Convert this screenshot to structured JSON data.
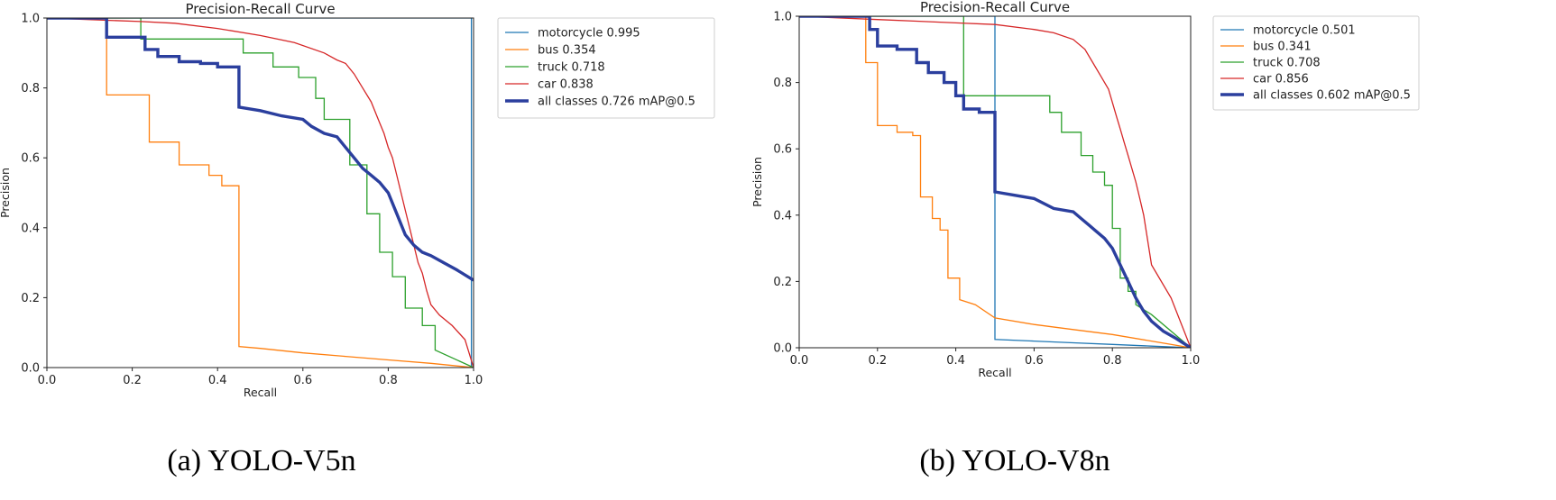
{
  "chart_data": [
    {
      "type": "line",
      "title": "Precision-Recall Curve",
      "xlabel": "Recall",
      "ylabel": "Precision",
      "xlim": [
        0,
        1
      ],
      "ylim": [
        0,
        1
      ],
      "xticks": [
        "0.0",
        "0.2",
        "0.4",
        "0.6",
        "0.8",
        "1.0"
      ],
      "yticks": [
        "0.0",
        "0.2",
        "0.4",
        "0.6",
        "0.8",
        "1.0"
      ],
      "caption": "(a) YOLO-V5n",
      "legend_position": "outside-right",
      "series": [
        {
          "name": "motorcycle 0.995",
          "color": "#1f77b4",
          "width": 1.3,
          "x": [
            0,
            0.995,
            0.995,
            1.0
          ],
          "y": [
            1,
            1,
            0,
            0
          ]
        },
        {
          "name": "bus 0.354",
          "color": "#ff7f0e",
          "width": 1.3,
          "x": [
            0,
            0.14,
            0.14,
            0.24,
            0.24,
            0.31,
            0.31,
            0.38,
            0.38,
            0.41,
            0.41,
            0.45,
            0.45,
            0.5,
            0.6,
            0.7,
            0.8,
            0.9,
            1.0
          ],
          "y": [
            1,
            1,
            0.78,
            0.78,
            0.645,
            0.645,
            0.58,
            0.58,
            0.55,
            0.55,
            0.52,
            0.52,
            0.06,
            0.055,
            0.042,
            0.032,
            0.022,
            0.012,
            0
          ]
        },
        {
          "name": "truck 0.718",
          "color": "#2ca02c",
          "width": 1.3,
          "x": [
            0,
            0.22,
            0.22,
            0.46,
            0.46,
            0.53,
            0.53,
            0.59,
            0.59,
            0.63,
            0.63,
            0.65,
            0.65,
            0.71,
            0.71,
            0.75,
            0.75,
            0.78,
            0.78,
            0.81,
            0.81,
            0.84,
            0.84,
            0.88,
            0.88,
            0.91,
            0.91,
            1.0
          ],
          "y": [
            1,
            1,
            0.94,
            0.94,
            0.9,
            0.9,
            0.86,
            0.86,
            0.83,
            0.83,
            0.77,
            0.77,
            0.71,
            0.71,
            0.58,
            0.58,
            0.44,
            0.44,
            0.33,
            0.33,
            0.26,
            0.26,
            0.17,
            0.17,
            0.12,
            0.12,
            0.05,
            0
          ]
        },
        {
          "name": "car 0.838",
          "color": "#d62728",
          "width": 1.3,
          "x": [
            0,
            0.22,
            0.3,
            0.4,
            0.5,
            0.58,
            0.65,
            0.68,
            0.7,
            0.72,
            0.74,
            0.76,
            0.77,
            0.78,
            0.79,
            0.8,
            0.81,
            0.82,
            0.83,
            0.84,
            0.85,
            0.86,
            0.87,
            0.88,
            0.89,
            0.9,
            0.92,
            0.95,
            0.98,
            1.0
          ],
          "y": [
            1,
            0.99,
            0.985,
            0.97,
            0.95,
            0.93,
            0.9,
            0.88,
            0.87,
            0.84,
            0.8,
            0.76,
            0.73,
            0.7,
            0.67,
            0.63,
            0.6,
            0.55,
            0.5,
            0.45,
            0.4,
            0.35,
            0.3,
            0.27,
            0.22,
            0.18,
            0.15,
            0.12,
            0.08,
            0.0
          ]
        },
        {
          "name": "all classes 0.726 mAP@0.5",
          "color": "#2b3f9e",
          "width": 3.4,
          "x": [
            0,
            0.14,
            0.14,
            0.23,
            0.23,
            0.26,
            0.26,
            0.31,
            0.31,
            0.36,
            0.36,
            0.4,
            0.4,
            0.45,
            0.45,
            0.5,
            0.55,
            0.6,
            0.62,
            0.65,
            0.68,
            0.7,
            0.72,
            0.74,
            0.76,
            0.78,
            0.8,
            0.82,
            0.84,
            0.86,
            0.88,
            0.9,
            0.93,
            0.96,
            1.0
          ],
          "y": [
            1,
            1,
            0.945,
            0.945,
            0.91,
            0.91,
            0.89,
            0.89,
            0.875,
            0.875,
            0.87,
            0.87,
            0.86,
            0.86,
            0.745,
            0.735,
            0.72,
            0.71,
            0.69,
            0.67,
            0.66,
            0.63,
            0.6,
            0.57,
            0.55,
            0.53,
            0.5,
            0.44,
            0.38,
            0.35,
            0.33,
            0.32,
            0.3,
            0.28,
            0.25
          ]
        }
      ]
    },
    {
      "type": "line",
      "title": "Precision-Recall Curve",
      "xlabel": "Recall",
      "ylabel": "Precision",
      "xlim": [
        0,
        1
      ],
      "ylim": [
        0,
        1
      ],
      "xticks": [
        "0.0",
        "0.2",
        "0.4",
        "0.6",
        "0.8",
        "1.0"
      ],
      "yticks": [
        "0.0",
        "0.2",
        "0.4",
        "0.6",
        "0.8",
        "1.0"
      ],
      "caption": "(b) YOLO-V8n",
      "legend_position": "outside-right",
      "series": [
        {
          "name": "motorcycle 0.501",
          "color": "#1f77b4",
          "width": 1.3,
          "x": [
            0,
            0.5,
            0.5,
            0.6,
            0.7,
            0.8,
            0.9,
            1.0
          ],
          "y": [
            1,
            1,
            0.025,
            0.02,
            0.015,
            0.01,
            0.005,
            0
          ]
        },
        {
          "name": "bus 0.341",
          "color": "#ff7f0e",
          "width": 1.3,
          "x": [
            0,
            0.17,
            0.17,
            0.2,
            0.2,
            0.25,
            0.25,
            0.29,
            0.29,
            0.31,
            0.31,
            0.34,
            0.34,
            0.36,
            0.36,
            0.38,
            0.38,
            0.41,
            0.41,
            0.45,
            0.5,
            0.6,
            0.7,
            0.8,
            0.9,
            1.0
          ],
          "y": [
            1,
            1,
            0.86,
            0.86,
            0.67,
            0.67,
            0.65,
            0.65,
            0.64,
            0.64,
            0.455,
            0.455,
            0.39,
            0.39,
            0.355,
            0.355,
            0.21,
            0.21,
            0.145,
            0.13,
            0.09,
            0.07,
            0.055,
            0.04,
            0.02,
            0
          ]
        },
        {
          "name": "truck 0.708",
          "color": "#2ca02c",
          "width": 1.3,
          "x": [
            0,
            0.42,
            0.42,
            0.64,
            0.64,
            0.67,
            0.67,
            0.72,
            0.72,
            0.75,
            0.75,
            0.78,
            0.78,
            0.8,
            0.8,
            0.82,
            0.82,
            0.84,
            0.84,
            0.86,
            0.86,
            0.9,
            1.0
          ],
          "y": [
            1,
            1,
            0.76,
            0.76,
            0.71,
            0.71,
            0.65,
            0.65,
            0.58,
            0.58,
            0.53,
            0.53,
            0.49,
            0.49,
            0.36,
            0.36,
            0.21,
            0.21,
            0.17,
            0.17,
            0.13,
            0.1,
            0
          ]
        },
        {
          "name": "car 0.856",
          "color": "#d62728",
          "width": 1.3,
          "x": [
            0,
            0.2,
            0.3,
            0.4,
            0.5,
            0.6,
            0.65,
            0.7,
            0.73,
            0.75,
            0.77,
            0.79,
            0.8,
            0.81,
            0.82,
            0.83,
            0.84,
            0.85,
            0.86,
            0.87,
            0.88,
            0.9,
            0.95,
            1.0
          ],
          "y": [
            1,
            0.99,
            0.985,
            0.98,
            0.975,
            0.96,
            0.95,
            0.93,
            0.9,
            0.86,
            0.82,
            0.78,
            0.74,
            0.7,
            0.66,
            0.62,
            0.58,
            0.54,
            0.5,
            0.45,
            0.4,
            0.25,
            0.15,
            0
          ]
        },
        {
          "name": "all classes 0.602 mAP@0.5",
          "color": "#2b3f9e",
          "width": 3.4,
          "x": [
            0,
            0.18,
            0.18,
            0.2,
            0.2,
            0.25,
            0.25,
            0.3,
            0.3,
            0.33,
            0.33,
            0.37,
            0.37,
            0.4,
            0.4,
            0.42,
            0.42,
            0.46,
            0.46,
            0.5,
            0.5,
            0.55,
            0.6,
            0.65,
            0.7,
            0.72,
            0.74,
            0.76,
            0.78,
            0.8,
            0.82,
            0.84,
            0.86,
            0.88,
            0.9,
            0.93,
            0.96,
            1.0
          ],
          "y": [
            1,
            1,
            0.96,
            0.96,
            0.91,
            0.91,
            0.9,
            0.9,
            0.86,
            0.86,
            0.83,
            0.83,
            0.8,
            0.8,
            0.76,
            0.76,
            0.72,
            0.72,
            0.71,
            0.71,
            0.47,
            0.46,
            0.45,
            0.42,
            0.41,
            0.39,
            0.37,
            0.35,
            0.33,
            0.3,
            0.25,
            0.2,
            0.15,
            0.11,
            0.08,
            0.05,
            0.03,
            0
          ]
        }
      ]
    }
  ]
}
